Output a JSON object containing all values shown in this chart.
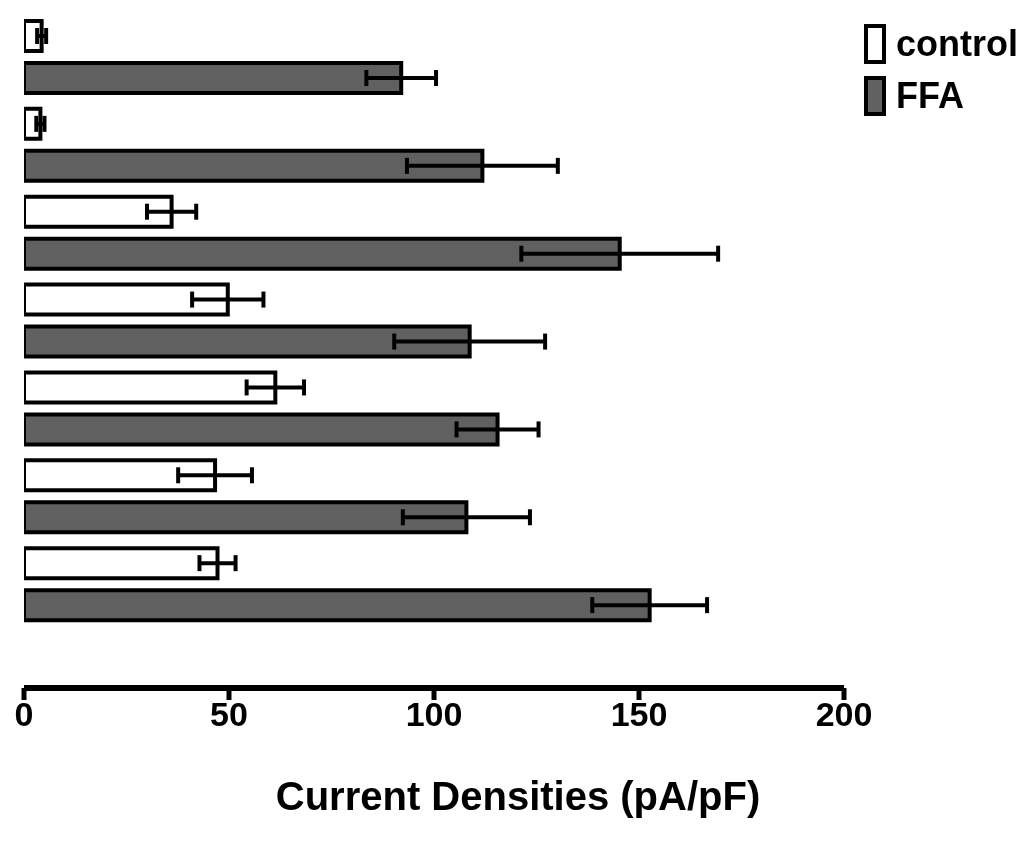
{
  "chart_data": {
    "type": "bar",
    "orientation": "horizontal",
    "xlabel": "Current Densities (pA/pF)",
    "categories": [
      null,
      null,
      null,
      null,
      null,
      null,
      null
    ],
    "series": [
      {
        "name": "control",
        "color": "#ffffff",
        "values": [
          4.3,
          4,
          36,
          49.7,
          61.3,
          46.6,
          47.2
        ],
        "errors": [
          1.1,
          1,
          6,
          8.7,
          7,
          9,
          4.4
        ]
      },
      {
        "name": "FFA",
        "color": "#606060",
        "values": [
          92,
          111.8,
          145.3,
          108.7,
          115.5,
          107.9,
          152.6
        ],
        "errors": [
          8.5,
          18.4,
          24,
          18.4,
          10,
          15.5,
          14
        ]
      }
    ],
    "xlim": [
      0,
      200
    ],
    "xticks": [
      0,
      50,
      100,
      150,
      200
    ],
    "legend": "top right",
    "grid": false
  }
}
